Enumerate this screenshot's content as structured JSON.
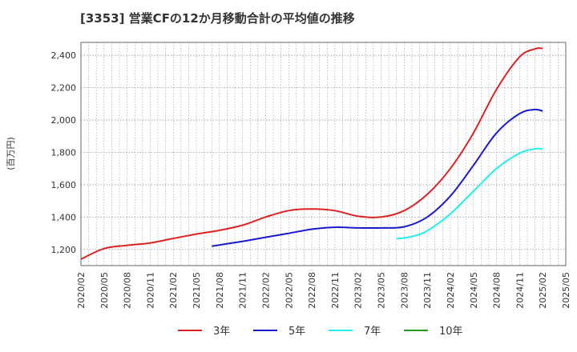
{
  "title": "[3353]  営業CFの12か月移動合計の平均値の推移",
  "chart_data": {
    "type": "line",
    "title": "[3353]  営業CFの12か月移動合計の平均値の推移",
    "xlabel": "",
    "ylabel": "(百万円)",
    "ylim": [
      1100,
      2480
    ],
    "yticks": [
      1200,
      1400,
      1600,
      1800,
      2000,
      2200,
      2400
    ],
    "ytick_labels": [
      "1,200",
      "1,400",
      "1,600",
      "1,800",
      "2,000",
      "2,200",
      "2,400"
    ],
    "xticks": [
      "2020/02",
      "2020/05",
      "2020/08",
      "2020/11",
      "2021/02",
      "2021/05",
      "2021/08",
      "2021/11",
      "2022/02",
      "2022/05",
      "2022/08",
      "2022/11",
      "2023/02",
      "2023/05",
      "2023/08",
      "2023/11",
      "2024/02",
      "2024/05",
      "2024/08",
      "2024/11",
      "2025/02",
      "2025/05"
    ],
    "grid": true,
    "legend_position": "bottom",
    "series": [
      {
        "name": "3年",
        "color": "#dd2222",
        "x": [
          "2020/02",
          "2020/05",
          "2020/08",
          "2020/11",
          "2021/02",
          "2021/05",
          "2021/08",
          "2021/11",
          "2022/02",
          "2022/05",
          "2022/08",
          "2022/11",
          "2023/02",
          "2023/05",
          "2023/08",
          "2023/11",
          "2024/02",
          "2024/05",
          "2024/08",
          "2024/11",
          "2025/01",
          "2025/02"
        ],
        "values": [
          1140,
          1205,
          1225,
          1240,
          1268,
          1295,
          1318,
          1350,
          1400,
          1440,
          1450,
          1440,
          1405,
          1400,
          1440,
          1540,
          1700,
          1920,
          2190,
          2390,
          2440,
          2443
        ]
      },
      {
        "name": "5年",
        "color": "#1a1acc",
        "x": [
          "2021/07",
          "2021/11",
          "2022/02",
          "2022/05",
          "2022/08",
          "2022/11",
          "2023/02",
          "2023/05",
          "2023/08",
          "2023/11",
          "2024/02",
          "2024/05",
          "2024/08",
          "2024/11",
          "2025/01",
          "2025/02"
        ],
        "values": [
          1220,
          1250,
          1275,
          1300,
          1325,
          1337,
          1333,
          1333,
          1340,
          1400,
          1530,
          1720,
          1920,
          2040,
          2065,
          2055
        ]
      },
      {
        "name": "7年",
        "color": "#22eeee",
        "x": [
          "2023/07",
          "2023/09",
          "2023/11",
          "2024/02",
          "2024/05",
          "2024/08",
          "2024/11",
          "2025/01",
          "2025/02"
        ],
        "values": [
          1265,
          1280,
          1315,
          1420,
          1560,
          1700,
          1795,
          1822,
          1822
        ]
      },
      {
        "name": "10年",
        "color": "#229922",
        "x": [],
        "values": []
      }
    ]
  }
}
